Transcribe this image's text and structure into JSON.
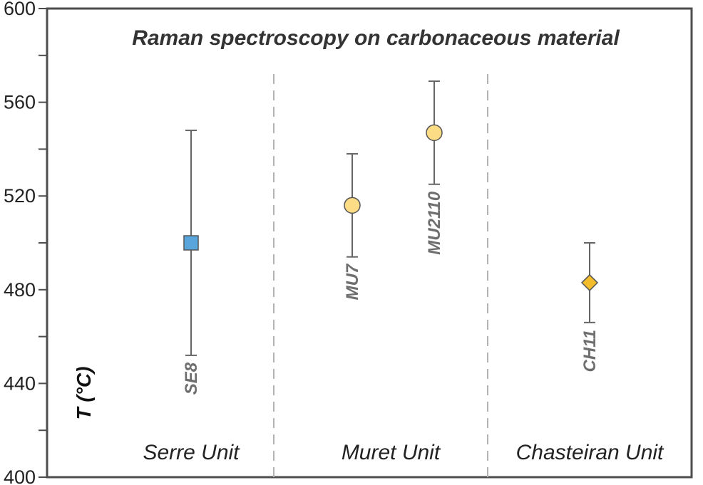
{
  "chart_data": {
    "type": "scatter",
    "title": "Raman spectroscopy on carbonaceous material",
    "xlabel": "",
    "ylabel": "T (°C)",
    "ylim": [
      400,
      600
    ],
    "yticks": [
      400,
      440,
      480,
      520,
      560,
      600
    ],
    "grid": false,
    "groups": [
      {
        "label": "Serre Unit"
      },
      {
        "label": "Muret Unit"
      },
      {
        "label": "Chasteiran Unit"
      }
    ],
    "points": [
      {
        "sample": "SE8",
        "group": "Serre Unit",
        "y": 500,
        "ymin": 452,
        "ymax": 548,
        "marker": "square",
        "color": "#5aa6dc"
      },
      {
        "sample": "MU7",
        "group": "Muret Unit",
        "y": 516,
        "ymin": 494,
        "ymax": 538,
        "marker": "circle",
        "color": "#fcdc84"
      },
      {
        "sample": "MU2110",
        "group": "Muret Unit",
        "y": 547,
        "ymin": 525,
        "ymax": 569,
        "marker": "circle",
        "color": "#fcdc84"
      },
      {
        "sample": "CH11",
        "group": "Chasteiran Unit",
        "y": 483,
        "ymin": 466,
        "ymax": 500,
        "marker": "diamond",
        "color": "#f2bc2a"
      }
    ]
  }
}
